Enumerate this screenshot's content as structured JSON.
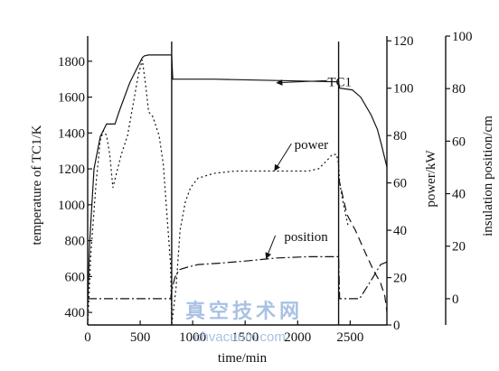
{
  "chart_data": {
    "type": "line",
    "xlabel": "time/min",
    "xlim": [
      0,
      2850
    ],
    "xticks": [
      0,
      500,
      1000,
      1500,
      2000,
      2500
    ],
    "axes": {
      "left": {
        "label": "temperature of TC1/K",
        "lim": [
          330,
          1940
        ],
        "ticks": [
          400,
          600,
          800,
          1000,
          1200,
          1400,
          1600,
          1800
        ]
      },
      "right1": {
        "label": "power/kW",
        "lim": [
          0,
          122
        ],
        "ticks": [
          0,
          20,
          40,
          60,
          80,
          100,
          120
        ]
      },
      "right2": {
        "label": "insulation position/cm",
        "lim": [
          -10,
          100
        ],
        "ticks": [
          0,
          20,
          40,
          60,
          80,
          100
        ]
      }
    },
    "vlines": [
      800,
      2390
    ],
    "series": [
      {
        "name": "TC1",
        "axis": "left",
        "dash": "",
        "x": [
          0,
          20,
          60,
          120,
          180,
          260,
          300,
          400,
          520,
          540,
          580,
          600,
          800,
          810,
          1200,
          2000,
          2390,
          2400,
          2520,
          2600,
          2700,
          2760,
          2800,
          2850
        ],
        "y": [
          440,
          800,
          1200,
          1380,
          1450,
          1450,
          1520,
          1680,
          1820,
          1830,
          1835,
          1835,
          1835,
          1700,
          1700,
          1690,
          1685,
          1650,
          1640,
          1600,
          1500,
          1420,
          1330,
          1210
        ]
      },
      {
        "name": "power",
        "axis": "right1",
        "dash": "2 3",
        "x": [
          0,
          30,
          80,
          120,
          150,
          180,
          210,
          240,
          280,
          320,
          380,
          440,
          480,
          520,
          550,
          580,
          620,
          680,
          720,
          790,
          800,
          840,
          880,
          930,
          980,
          1050,
          1200,
          1400,
          1600,
          1800,
          2100,
          2200,
          2290,
          2330,
          2370,
          2390,
          2400,
          2420,
          2440,
          2480
        ],
        "y": [
          0,
          30,
          60,
          78,
          82,
          80,
          72,
          58,
          65,
          72,
          80,
          95,
          105,
          112,
          102,
          90,
          88,
          80,
          68,
          25,
          0,
          15,
          40,
          52,
          58,
          62,
          64,
          65,
          65,
          65,
          65,
          66,
          70,
          72,
          72,
          68,
          60,
          55,
          50,
          42
        ]
      },
      {
        "name": "position",
        "axis": "right2",
        "dash": "10 3 2 3",
        "x": [
          0,
          790,
          800,
          830,
          870,
          950,
          1050,
          1250,
          1550,
          1800,
          2100,
          2300,
          2390,
          2400,
          2590,
          2700,
          2790,
          2850
        ],
        "y": [
          0,
          0,
          3,
          8,
          11,
          12,
          13,
          13.5,
          14.5,
          15.5,
          16,
          16,
          16,
          0,
          0,
          7,
          13,
          14
        ]
      },
      {
        "name": "",
        "axis": "right2",
        "dash": "9 5",
        "x": [
          2390,
          2430,
          2470,
          2550,
          2650,
          2720,
          2790,
          2830,
          2850
        ],
        "y": [
          46,
          39,
          32,
          26,
          17,
          11,
          6,
          1,
          -5
        ]
      }
    ],
    "annotations": [
      {
        "text": "TC1",
        "x": 2400,
        "axis": "right2",
        "y": 81
      },
      {
        "text": "power",
        "x": 2130,
        "axis": "right2",
        "y": 57
      },
      {
        "text": "position",
        "x": 2080,
        "axis": "right2",
        "y": 22
      }
    ]
  },
  "watermark": {
    "cn": "真空技术网",
    "url": "chvacuum.com"
  }
}
